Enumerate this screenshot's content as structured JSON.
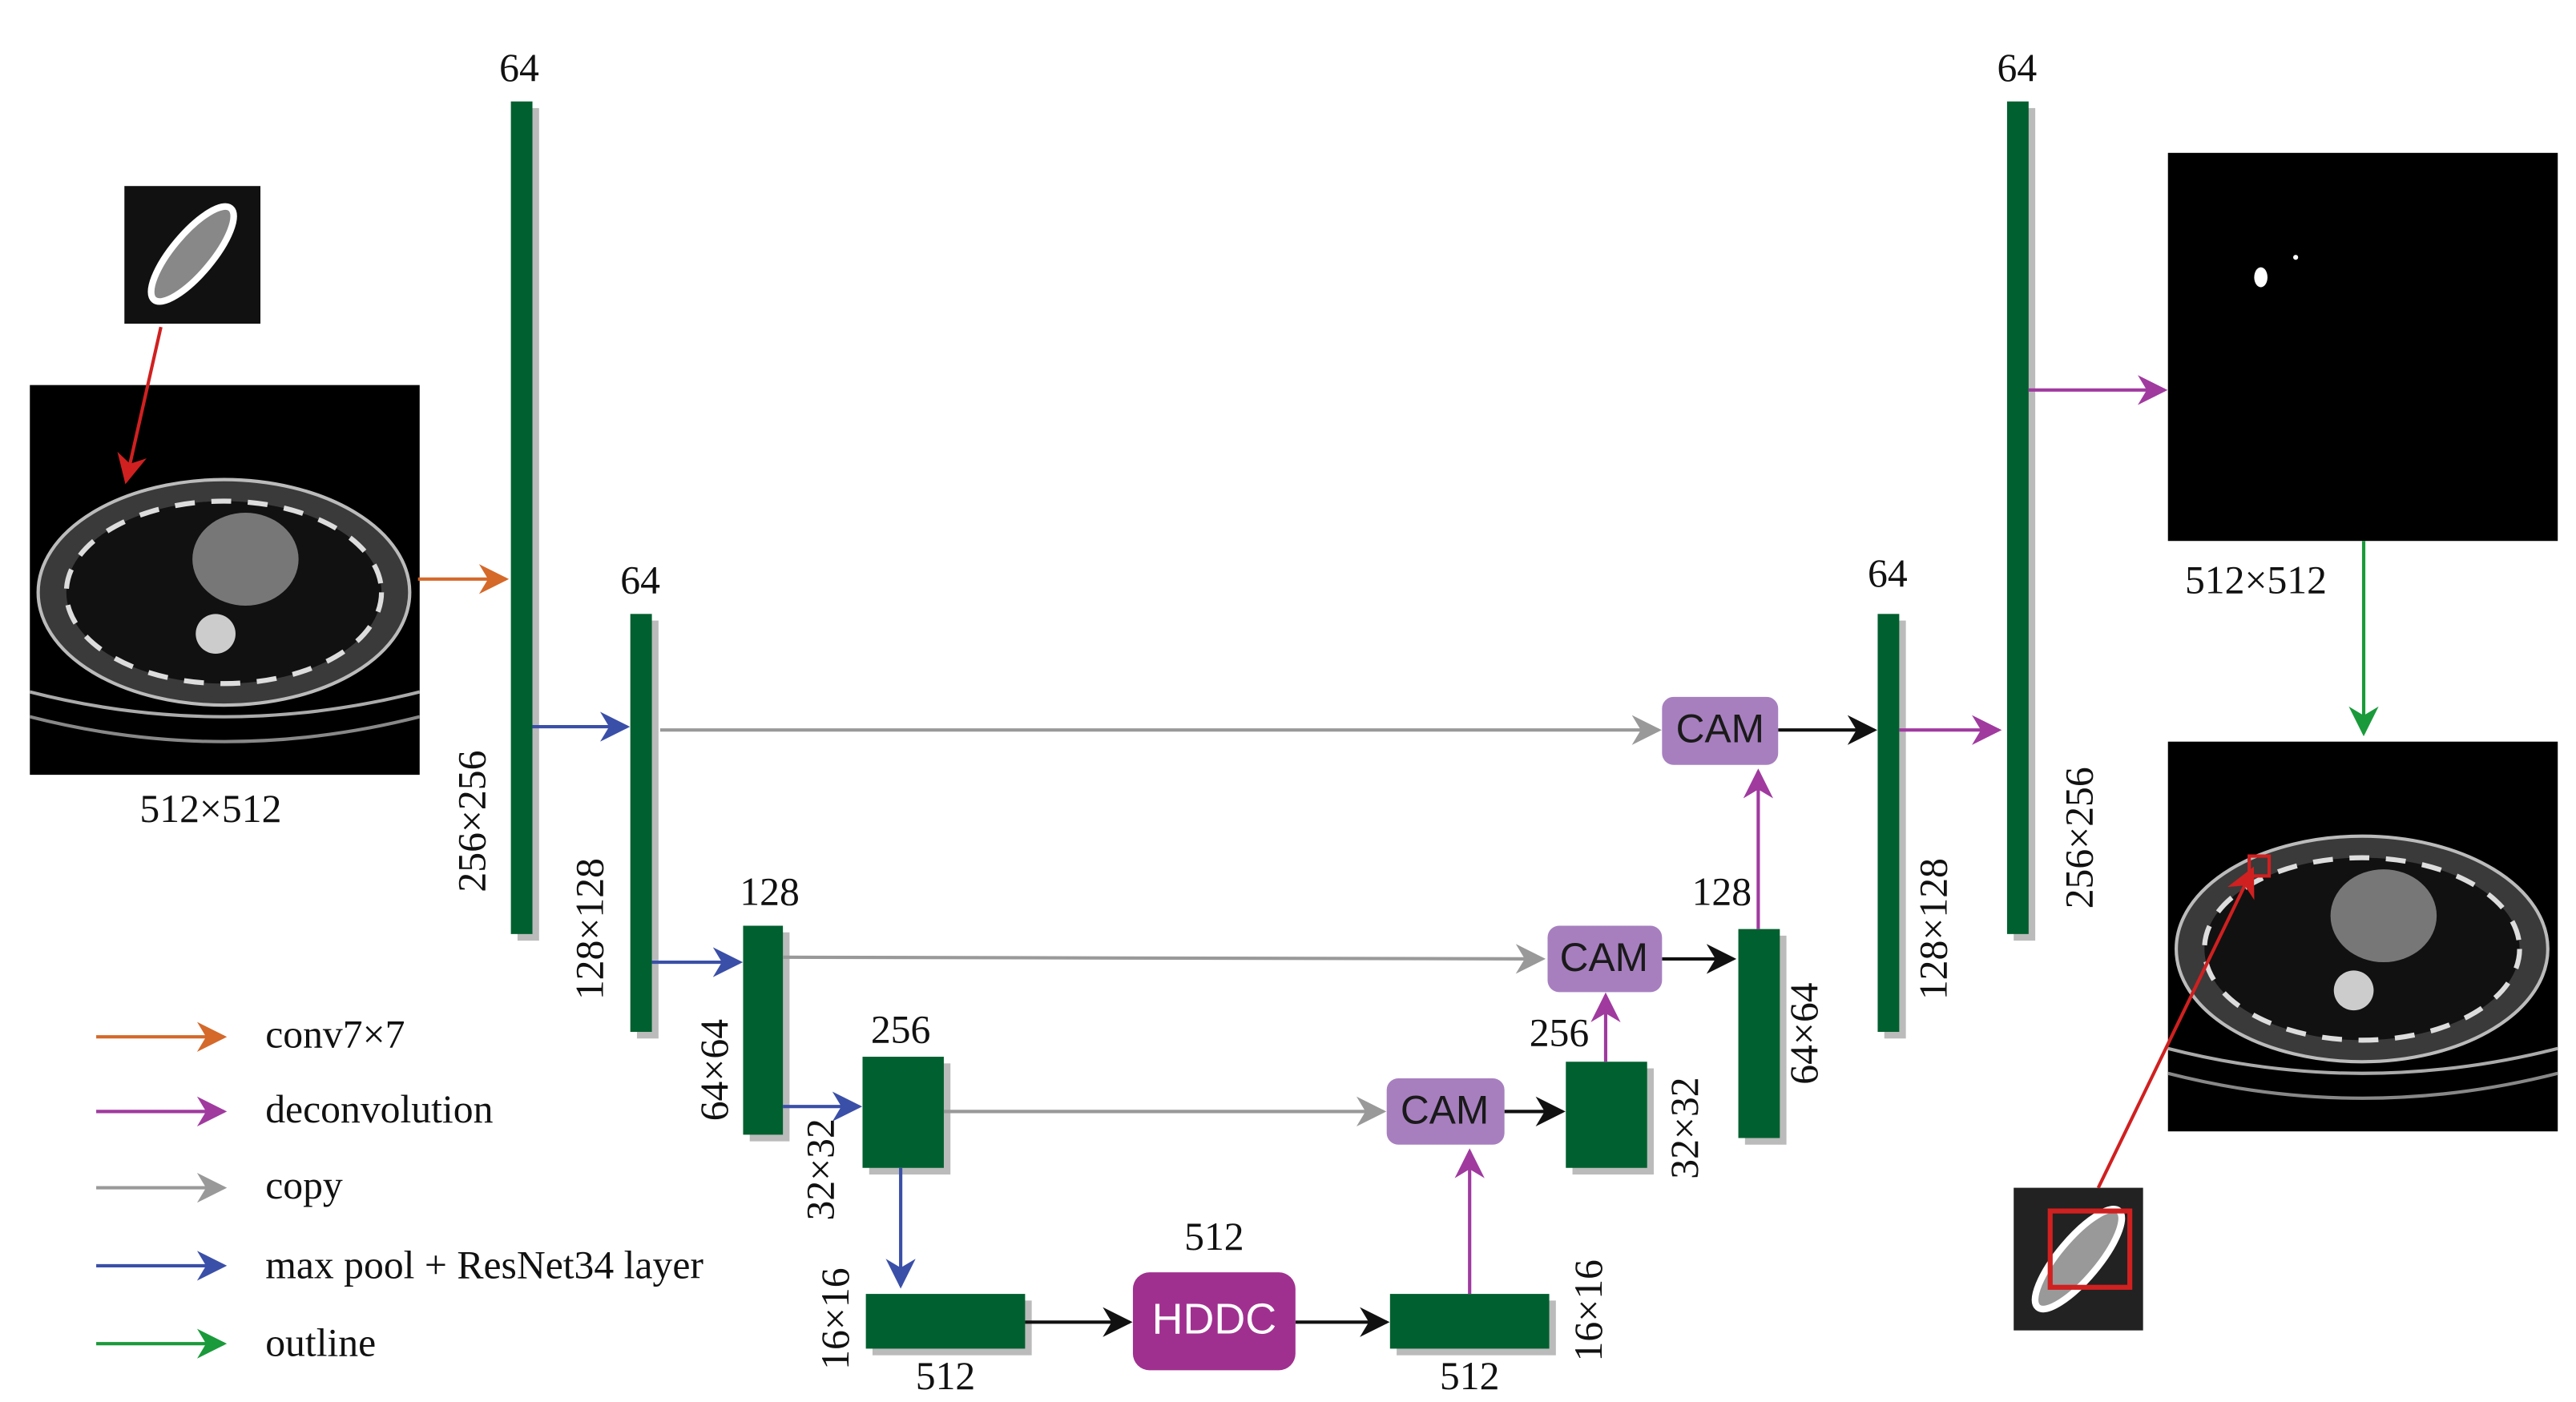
{
  "input": {
    "size": "512×512"
  },
  "output": {
    "size": "512×512"
  },
  "encoder": [
    {
      "channels": "64",
      "size": "256×256"
    },
    {
      "channels": "64",
      "size": "128×128"
    },
    {
      "channels": "128",
      "size": "64×64"
    },
    {
      "channels": "256",
      "size": "32×32"
    },
    {
      "channels": "512",
      "size": "16×16"
    }
  ],
  "bottleneck": {
    "label": "HDDC",
    "channels": "512"
  },
  "decoder": [
    {
      "channels": "512",
      "size": "16×16"
    },
    {
      "channels": "256",
      "size": "32×32"
    },
    {
      "channels": "128",
      "size": "64×64"
    },
    {
      "channels": "64",
      "size": "128×128"
    },
    {
      "channels": "64",
      "size": "256×256"
    }
  ],
  "cam_modules": [
    "CAM",
    "CAM",
    "CAM"
  ],
  "legend": [
    "conv7×7",
    "deconvolution",
    "copy",
    "max pool + ResNet34 layer",
    "outline"
  ]
}
